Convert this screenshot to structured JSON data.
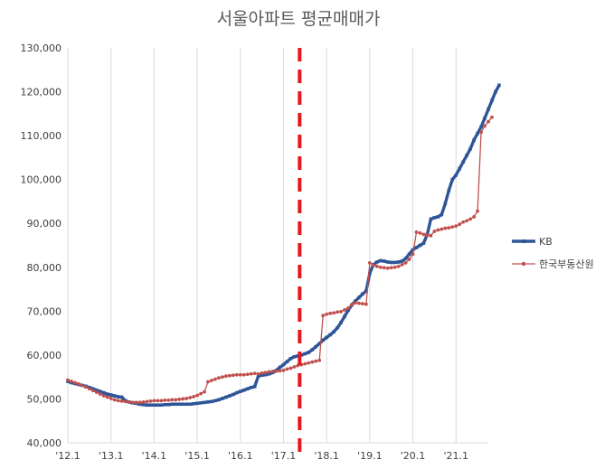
{
  "chart_data": {
    "type": "line",
    "title": "서울아파트 평균매매가",
    "xlabel": "",
    "ylabel": "",
    "ylim": [
      40000,
      130000
    ],
    "y_ticks": [
      "40,000",
      "50,000",
      "60,000",
      "70,000",
      "80,000",
      "90,000",
      "100,000",
      "110,000",
      "120,000",
      "130,000"
    ],
    "x_tick_labels": [
      "'12.1",
      "'13.1",
      "'14.1",
      "'15.1",
      "'16.1",
      "'17.1",
      "'18.1",
      "'19.1",
      "'20.1",
      "'21.1"
    ],
    "x_tick_positions": [
      0,
      12,
      24,
      36,
      48,
      60,
      72,
      84,
      96,
      108
    ],
    "xlim": [
      0,
      117
    ],
    "grid": "vertical",
    "legend_position": "right",
    "annotation": {
      "type": "vertical-dashed-line",
      "x": 64.5,
      "color": "#e8161b"
    },
    "series": [
      {
        "name": "KB",
        "color": "#2e5597",
        "marker": "square",
        "values": [
          54000,
          53700,
          53500,
          53300,
          53100,
          52900,
          52600,
          52300,
          52000,
          51700,
          51400,
          51100,
          50900,
          50700,
          50500,
          50400,
          49600,
          49300,
          49100,
          49000,
          48800,
          48700,
          48600,
          48600,
          48600,
          48600,
          48600,
          48700,
          48700,
          48800,
          48800,
          48800,
          48800,
          48800,
          48800,
          48900,
          49000,
          49100,
          49200,
          49300,
          49400,
          49600,
          49800,
          50100,
          50400,
          50700,
          51000,
          51400,
          51700,
          52000,
          52300,
          52600,
          52800,
          55200,
          55400,
          55500,
          55700,
          56000,
          56500,
          57200,
          57800,
          58500,
          59200,
          59600,
          59800,
          60000,
          60300,
          60600,
          61200,
          61900,
          62600,
          63400,
          64000,
          64600,
          65300,
          66200,
          67400,
          68800,
          70200,
          71400,
          72300,
          73100,
          73900,
          74600,
          78600,
          80600,
          81200,
          81500,
          81400,
          81200,
          81100,
          81100,
          81200,
          81400,
          82000,
          83000,
          84000,
          84500,
          85000,
          85500,
          87500,
          91000,
          91300,
          91500,
          92000,
          94500,
          97500,
          100000,
          101000,
          102500,
          104000,
          105500,
          107000,
          109000,
          110500,
          112000,
          114000,
          116000,
          118000,
          120000,
          121500
        ]
      },
      {
        "name": "한국부동산원",
        "color": "#c0504d",
        "marker": "circle",
        "values": [
          54300,
          54000,
          53700,
          53400,
          53100,
          52700,
          52300,
          51900,
          51500,
          51100,
          50700,
          50400,
          50100,
          49800,
          49600,
          49500,
          49400,
          49300,
          49200,
          49200,
          49200,
          49300,
          49400,
          49500,
          49600,
          49600,
          49600,
          49700,
          49700,
          49800,
          49800,
          49900,
          50000,
          50100,
          50300,
          50500,
          50800,
          51200,
          51600,
          53900,
          54200,
          54500,
          54800,
          55000,
          55200,
          55300,
          55400,
          55500,
          55500,
          55500,
          55600,
          55700,
          55800,
          55700,
          55900,
          56000,
          56200,
          56300,
          56300,
          56400,
          56500,
          56800,
          57000,
          57300,
          57600,
          57800,
          58000,
          58200,
          58400,
          58600,
          58800,
          69000,
          69300,
          69500,
          69600,
          69800,
          69900,
          70300,
          70700,
          71500,
          71900,
          71800,
          71700,
          71600,
          81000,
          80500,
          80200,
          80000,
          79900,
          79800,
          79900,
          80000,
          80200,
          80600,
          81000,
          81800,
          83000,
          88000,
          87800,
          87500,
          87300,
          87200,
          88200,
          88500,
          88700,
          88900,
          89000,
          89200,
          89400,
          89800,
          90300,
          90600,
          91000,
          91500,
          92800,
          110800,
          112200,
          113200,
          114200
        ]
      }
    ]
  }
}
